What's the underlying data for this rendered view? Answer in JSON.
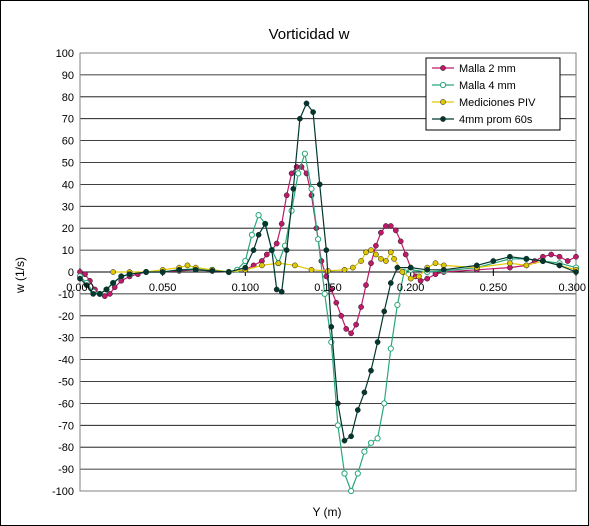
{
  "chart_data": {
    "type": "line",
    "title": "Vorticidad w",
    "xlabel": "Y (m)",
    "ylabel": "w (1/s)",
    "xlim": [
      0,
      0.3
    ],
    "ylim": [
      -100,
      100
    ],
    "xticks": [
      "0.000",
      "0.050",
      "0.100",
      "0.150",
      "0.200",
      "0.250",
      "0.300"
    ],
    "yticks": [
      "100",
      "90",
      "80",
      "70",
      "60",
      "50",
      "40",
      "30",
      "20",
      "10",
      "0",
      "-10",
      "-20",
      "-30",
      "-40",
      "-50",
      "-60",
      "-70",
      "-80",
      "-90",
      "-100"
    ],
    "grid": "horizontal",
    "legend_position": "top-right",
    "series": [
      {
        "name": "Malla 2 mm",
        "color": "#c0186a",
        "marker": "filled-circle",
        "points": [
          [
            0,
            0
          ],
          [
            0.003,
            -1
          ],
          [
            0.006,
            -4
          ],
          [
            0.009,
            -8
          ],
          [
            0.012,
            -10
          ],
          [
            0.015,
            -11
          ],
          [
            0.018,
            -10
          ],
          [
            0.021,
            -7
          ],
          [
            0.025,
            -4
          ],
          [
            0.03,
            -2
          ],
          [
            0.035,
            -1
          ],
          [
            0.04,
            0
          ],
          [
            0.05,
            0
          ],
          [
            0.06,
            0.5
          ],
          [
            0.07,
            1
          ],
          [
            0.08,
            0.5
          ],
          [
            0.09,
            0
          ],
          [
            0.1,
            1
          ],
          [
            0.105,
            3
          ],
          [
            0.11,
            5
          ],
          [
            0.113,
            8
          ],
          [
            0.116,
            10
          ],
          [
            0.119,
            13
          ],
          [
            0.122,
            22
          ],
          [
            0.125,
            35
          ],
          [
            0.128,
            45
          ],
          [
            0.131,
            48
          ],
          [
            0.134,
            48
          ],
          [
            0.137,
            45
          ],
          [
            0.14,
            35
          ],
          [
            0.143,
            20
          ],
          [
            0.146,
            5
          ],
          [
            0.149,
            -2
          ],
          [
            0.152,
            -8
          ],
          [
            0.155,
            -14
          ],
          [
            0.158,
            -20
          ],
          [
            0.161,
            -26
          ],
          [
            0.164,
            -28
          ],
          [
            0.167,
            -24
          ],
          [
            0.17,
            -16
          ],
          [
            0.173,
            -6
          ],
          [
            0.176,
            4
          ],
          [
            0.179,
            12
          ],
          [
            0.182,
            18
          ],
          [
            0.185,
            21
          ],
          [
            0.188,
            21
          ],
          [
            0.191,
            19
          ],
          [
            0.194,
            14
          ],
          [
            0.197,
            8
          ],
          [
            0.2,
            2
          ],
          [
            0.203,
            -2
          ],
          [
            0.206,
            -4
          ],
          [
            0.21,
            -3
          ],
          [
            0.215,
            -1
          ],
          [
            0.22,
            0
          ],
          [
            0.24,
            1
          ],
          [
            0.26,
            2
          ],
          [
            0.27,
            3
          ],
          [
            0.275,
            5
          ],
          [
            0.28,
            7
          ],
          [
            0.285,
            8
          ],
          [
            0.29,
            7
          ],
          [
            0.295,
            5
          ],
          [
            0.3,
            7
          ]
        ]
      },
      {
        "name": "Malla 4 mm",
        "color": "#2aa87a",
        "marker": "open-circle",
        "points": [
          [
            0,
            -2
          ],
          [
            0.004,
            -5
          ],
          [
            0.008,
            -9
          ],
          [
            0.012,
            -10
          ],
          [
            0.016,
            -8
          ],
          [
            0.02,
            -5
          ],
          [
            0.025,
            -2
          ],
          [
            0.03,
            -1
          ],
          [
            0.04,
            0
          ],
          [
            0.05,
            0
          ],
          [
            0.06,
            1
          ],
          [
            0.07,
            1.5
          ],
          [
            0.08,
            1
          ],
          [
            0.09,
            0
          ],
          [
            0.095,
            1
          ],
          [
            0.1,
            5
          ],
          [
            0.104,
            17
          ],
          [
            0.108,
            26
          ],
          [
            0.112,
            22
          ],
          [
            0.116,
            10
          ],
          [
            0.12,
            4
          ],
          [
            0.124,
            12
          ],
          [
            0.128,
            28
          ],
          [
            0.132,
            45
          ],
          [
            0.136,
            54
          ],
          [
            0.14,
            38
          ],
          [
            0.144,
            15
          ],
          [
            0.148,
            -10
          ],
          [
            0.152,
            -32
          ],
          [
            0.156,
            -70
          ],
          [
            0.16,
            -92
          ],
          [
            0.164,
            -100
          ],
          [
            0.168,
            -92
          ],
          [
            0.172,
            -82
          ],
          [
            0.176,
            -78
          ],
          [
            0.18,
            -76
          ],
          [
            0.184,
            -60
          ],
          [
            0.188,
            -35
          ],
          [
            0.192,
            -15
          ],
          [
            0.196,
            0
          ],
          [
            0.2,
            1
          ],
          [
            0.21,
            0
          ],
          [
            0.22,
            0.5
          ],
          [
            0.24,
            2
          ],
          [
            0.26,
            6
          ],
          [
            0.27,
            6
          ],
          [
            0.28,
            5
          ],
          [
            0.29,
            4
          ],
          [
            0.3,
            2
          ]
        ]
      },
      {
        "name": "Mediciones PIV",
        "color": "#e0c800",
        "marker": "filled-circle",
        "points": [
          [
            0.02,
            0
          ],
          [
            0.03,
            0
          ],
          [
            0.04,
            0
          ],
          [
            0.05,
            1
          ],
          [
            0.06,
            2
          ],
          [
            0.065,
            3
          ],
          [
            0.07,
            2
          ],
          [
            0.08,
            1
          ],
          [
            0.09,
            0
          ],
          [
            0.1,
            1
          ],
          [
            0.11,
            3
          ],
          [
            0.12,
            4
          ],
          [
            0.13,
            3
          ],
          [
            0.14,
            1
          ],
          [
            0.15,
            0.5
          ],
          [
            0.16,
            1
          ],
          [
            0.165,
            2
          ],
          [
            0.17,
            5
          ],
          [
            0.173,
            9
          ],
          [
            0.176,
            10
          ],
          [
            0.179,
            8
          ],
          [
            0.182,
            6
          ],
          [
            0.185,
            5
          ],
          [
            0.188,
            9
          ],
          [
            0.19,
            6
          ],
          [
            0.195,
            0
          ],
          [
            0.2,
            -3
          ],
          [
            0.205,
            -2
          ],
          [
            0.21,
            2
          ],
          [
            0.215,
            4
          ],
          [
            0.22,
            3
          ],
          [
            0.24,
            2
          ],
          [
            0.26,
            4
          ],
          [
            0.27,
            3
          ],
          [
            0.28,
            5
          ],
          [
            0.29,
            3
          ],
          [
            0.3,
            1
          ]
        ]
      },
      {
        "name": "4mm prom 60s",
        "color": "#003830",
        "marker": "filled-circle",
        "points": [
          [
            0,
            -3
          ],
          [
            0.004,
            -6
          ],
          [
            0.008,
            -10
          ],
          [
            0.012,
            -10
          ],
          [
            0.016,
            -8
          ],
          [
            0.02,
            -5
          ],
          [
            0.025,
            -2
          ],
          [
            0.03,
            -1
          ],
          [
            0.04,
            0
          ],
          [
            0.05,
            0
          ],
          [
            0.06,
            1
          ],
          [
            0.07,
            1
          ],
          [
            0.08,
            0.5
          ],
          [
            0.09,
            0
          ],
          [
            0.1,
            2
          ],
          [
            0.105,
            10
          ],
          [
            0.108,
            17
          ],
          [
            0.112,
            22
          ],
          [
            0.116,
            10
          ],
          [
            0.119,
            -8
          ],
          [
            0.122,
            -9
          ],
          [
            0.125,
            10
          ],
          [
            0.129,
            38
          ],
          [
            0.133,
            70
          ],
          [
            0.137,
            77
          ],
          [
            0.141,
            73
          ],
          [
            0.145,
            40
          ],
          [
            0.149,
            10
          ],
          [
            0.152,
            -25
          ],
          [
            0.156,
            -60
          ],
          [
            0.16,
            -77
          ],
          [
            0.164,
            -75
          ],
          [
            0.168,
            -63
          ],
          [
            0.172,
            -55
          ],
          [
            0.176,
            -45
          ],
          [
            0.18,
            -32
          ],
          [
            0.184,
            -18
          ],
          [
            0.188,
            -5
          ],
          [
            0.192,
            2
          ],
          [
            0.2,
            2
          ],
          [
            0.21,
            1
          ],
          [
            0.22,
            1
          ],
          [
            0.24,
            3
          ],
          [
            0.25,
            5
          ],
          [
            0.26,
            7
          ],
          [
            0.27,
            6
          ],
          [
            0.28,
            5
          ],
          [
            0.29,
            3
          ],
          [
            0.3,
            0
          ]
        ]
      }
    ]
  }
}
